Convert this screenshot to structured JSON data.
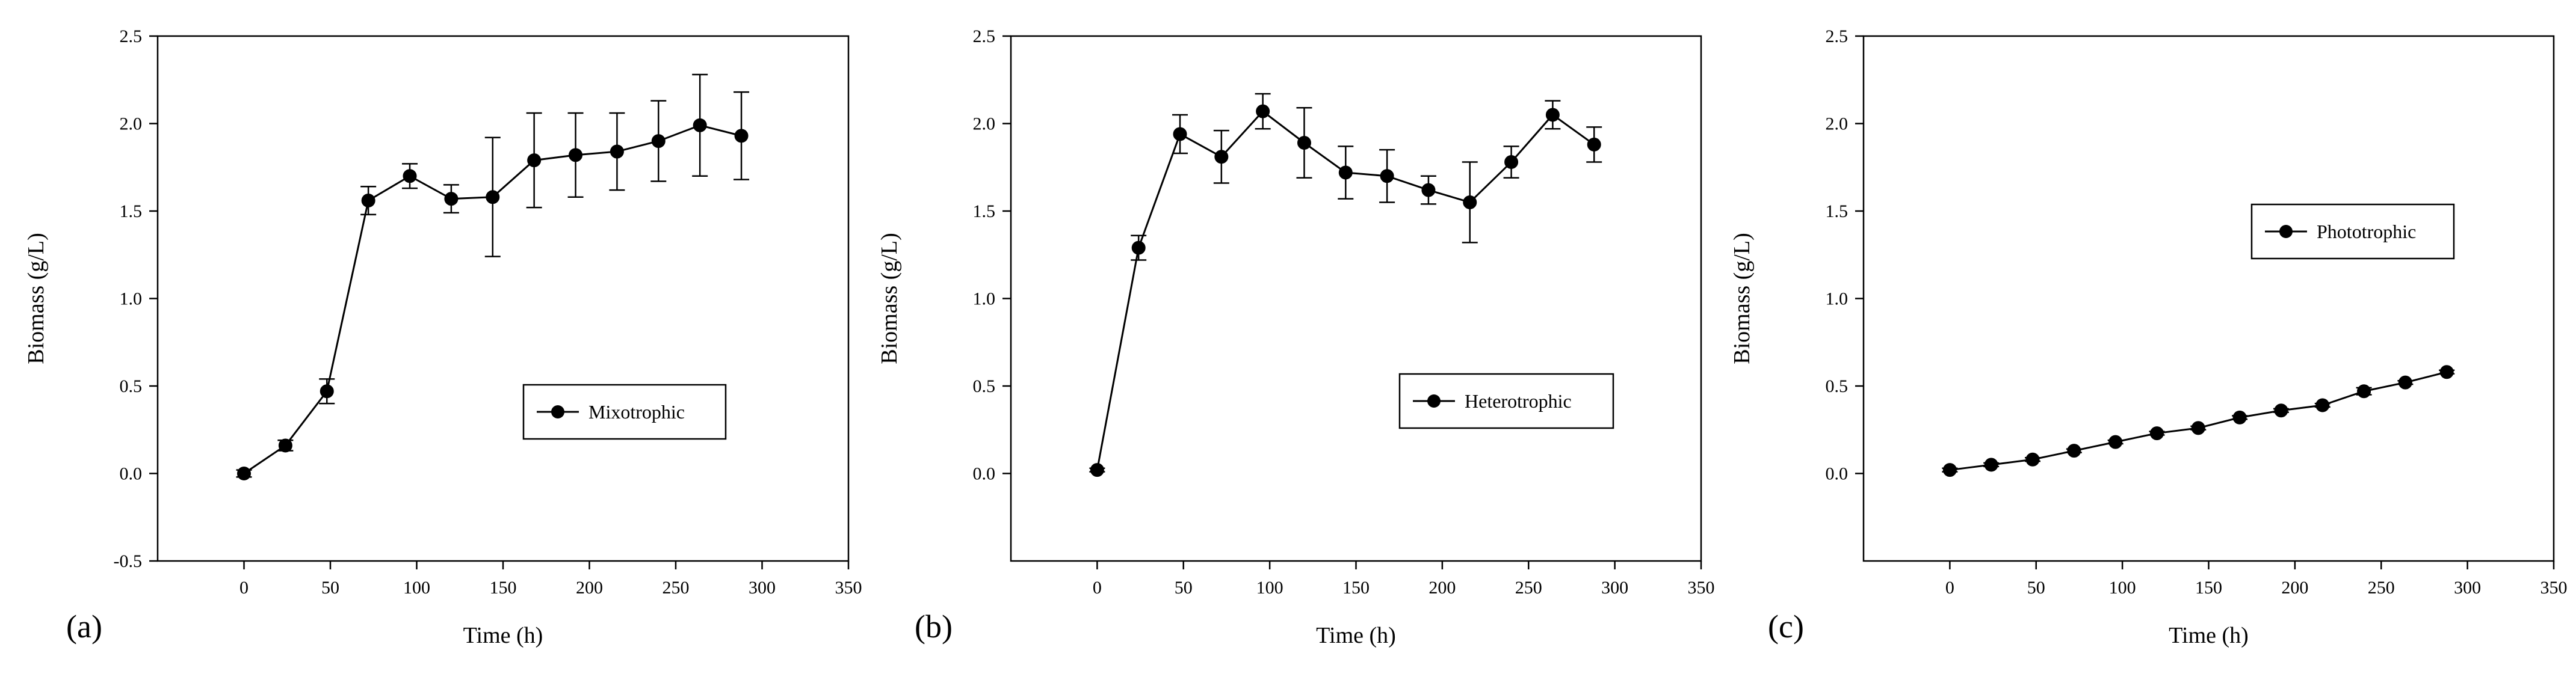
{
  "chart_data": [
    {
      "type": "line",
      "panel_label": "(a)",
      "xlabel": "Time (h)",
      "ylabel": "Biomass (g/L)",
      "xlim": [
        -50,
        350
      ],
      "ylim": [
        -0.5,
        2.5
      ],
      "xticks": [
        0,
        50,
        100,
        150,
        200,
        250,
        300,
        350
      ],
      "yticks": [
        -0.5,
        0.0,
        0.5,
        1.0,
        1.5,
        2.0,
        2.5
      ],
      "ytick_labels": [
        "-0.5",
        "0.0",
        "0.5",
        "1.0",
        "1.5",
        "2.0",
        "2.5"
      ],
      "legend_position": "middle-right",
      "error_bars": true,
      "series": [
        {
          "name": "Mixotrophic",
          "marker": "filled-circle",
          "color": "#000000",
          "x": [
            0,
            24,
            48,
            72,
            96,
            120,
            144,
            168,
            192,
            216,
            240,
            264,
            288
          ],
          "y": [
            0.0,
            0.16,
            0.47,
            1.56,
            1.7,
            1.57,
            1.58,
            1.79,
            1.82,
            1.84,
            1.9,
            1.99,
            1.93
          ],
          "err": [
            0.02,
            0.03,
            0.07,
            0.08,
            0.07,
            0.08,
            0.34,
            0.27,
            0.24,
            0.22,
            0.23,
            0.29,
            0.25
          ]
        }
      ]
    },
    {
      "type": "line",
      "panel_label": "(b)",
      "xlabel": "Time (h)",
      "ylabel": "Biomass (g/L)",
      "xlim": [
        -50,
        350
      ],
      "ylim": [
        -0.5,
        2.5
      ],
      "xticks": [
        0,
        50,
        100,
        150,
        200,
        250,
        300,
        350
      ],
      "yticks": [
        0.0,
        0.5,
        1.0,
        1.5,
        2.0,
        2.5
      ],
      "ytick_labels": [
        "0.0",
        "0.5",
        "1.0",
        "1.5",
        "2.0",
        "2.5"
      ],
      "legend_position": "middle-right",
      "error_bars": true,
      "series": [
        {
          "name": "Heterotrophic",
          "marker": "filled-circle",
          "color": "#000000",
          "x": [
            0,
            24,
            48,
            72,
            96,
            120,
            144,
            168,
            192,
            216,
            240,
            264,
            288
          ],
          "y": [
            0.02,
            1.29,
            1.94,
            1.81,
            2.07,
            1.89,
            1.72,
            1.7,
            1.62,
            1.55,
            1.78,
            2.05,
            1.88
          ],
          "err": [
            0.01,
            0.07,
            0.11,
            0.15,
            0.1,
            0.2,
            0.15,
            0.15,
            0.08,
            0.23,
            0.09,
            0.08,
            0.1
          ]
        }
      ]
    },
    {
      "type": "line",
      "panel_label": "(c)",
      "xlabel": "Time (h)",
      "ylabel": "Biomass (g/L)",
      "xlim": [
        -50,
        350
      ],
      "ylim": [
        -0.5,
        2.5
      ],
      "xticks": [
        0,
        50,
        100,
        150,
        200,
        250,
        300,
        350
      ],
      "yticks": [
        0.0,
        0.5,
        1.0,
        1.5,
        2.0,
        2.5
      ],
      "ytick_labels": [
        "0.0",
        "0.5",
        "1.0",
        "1.5",
        "2.0",
        "2.5"
      ],
      "legend_position": "upper-right",
      "error_bars": true,
      "series": [
        {
          "name": "Phototrophic",
          "marker": "filled-circle",
          "color": "#000000",
          "x": [
            0,
            24,
            48,
            72,
            96,
            120,
            144,
            168,
            192,
            216,
            240,
            264,
            288
          ],
          "y": [
            0.02,
            0.05,
            0.08,
            0.13,
            0.18,
            0.23,
            0.26,
            0.32,
            0.36,
            0.39,
            0.47,
            0.52,
            0.58
          ],
          "err": [
            0.01,
            0.01,
            0.01,
            0.01,
            0.01,
            0.01,
            0.01,
            0.01,
            0.01,
            0.01,
            0.02,
            0.01,
            0.01
          ]
        }
      ]
    }
  ]
}
